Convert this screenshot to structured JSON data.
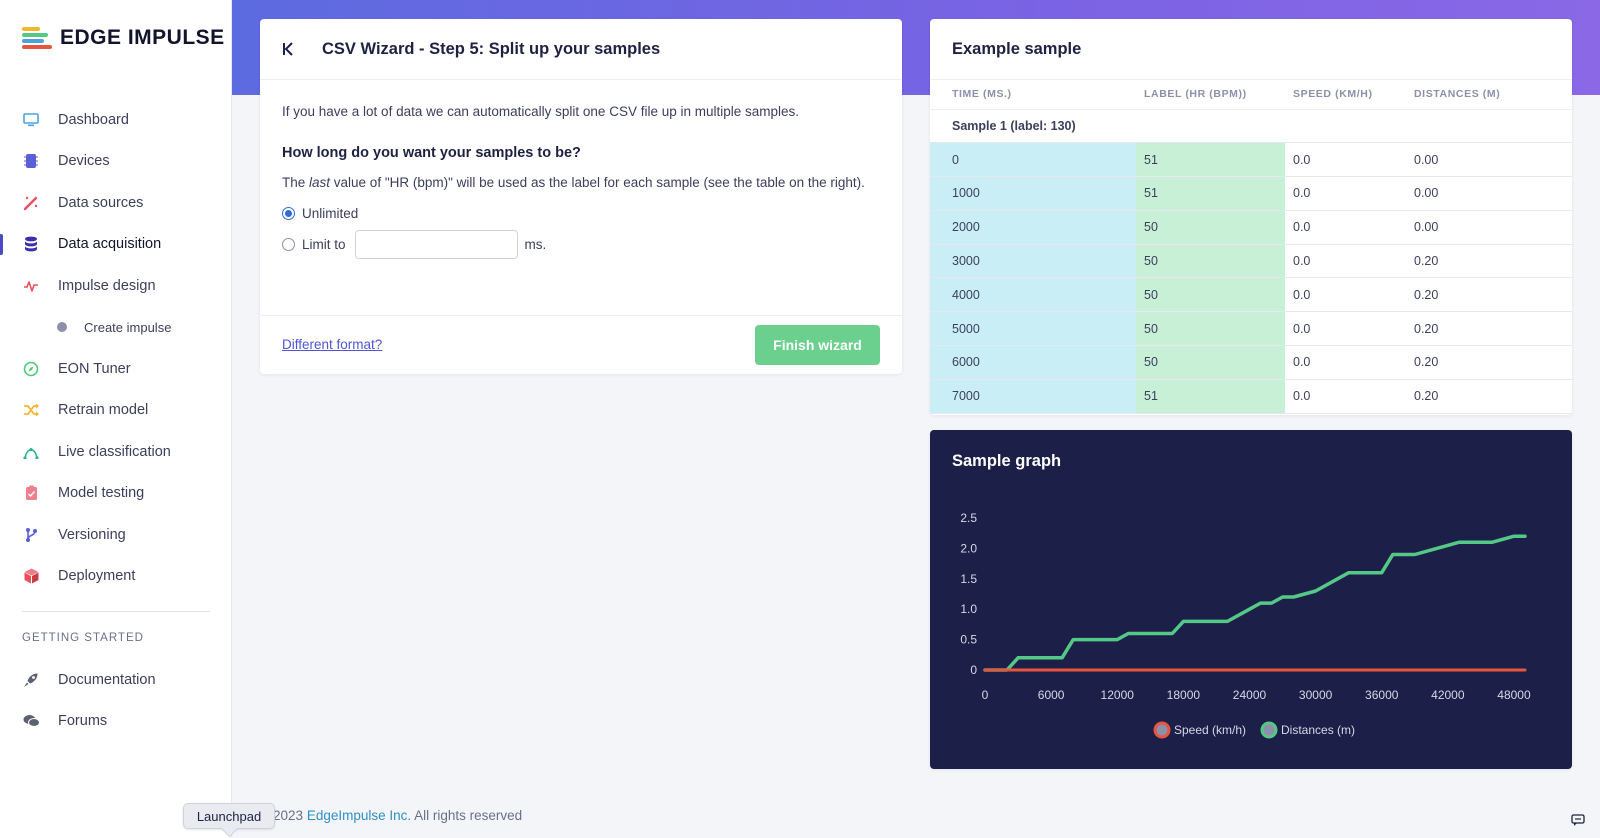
{
  "brand": {
    "name": "EDGE IMPULSE"
  },
  "sidebar": {
    "items": [
      {
        "label": "Dashboard",
        "icon": "monitor-icon",
        "color": "#4ea3dd"
      },
      {
        "label": "Devices",
        "icon": "chip-icon",
        "color": "#5b5fd6"
      },
      {
        "label": "Data sources",
        "icon": "wand-icon",
        "color": "#e8505b"
      },
      {
        "label": "Data acquisition",
        "icon": "database-icon",
        "color": "#3a2fa8",
        "active": true
      },
      {
        "label": "Impulse design",
        "icon": "pulse-icon",
        "color": "#e8505b"
      }
    ],
    "sub_item": {
      "label": "Create impulse"
    },
    "items_after": [
      {
        "label": "EON Tuner",
        "icon": "compass-icon",
        "color": "#4ccb7a"
      },
      {
        "label": "Retrain model",
        "icon": "shuffle-icon",
        "color": "#f2b630"
      },
      {
        "label": "Live classification",
        "icon": "signal-icon",
        "color": "#2fb38a"
      },
      {
        "label": "Model testing",
        "icon": "clipboard-icon",
        "color": "#ef7f8c"
      },
      {
        "label": "Versioning",
        "icon": "branch-icon",
        "color": "#5b5fd6"
      },
      {
        "label": "Deployment",
        "icon": "box-icon",
        "color": "#e8505b"
      }
    ],
    "section_title": "GETTING STARTED",
    "getting_started": [
      {
        "label": "Documentation",
        "icon": "rocket-icon"
      },
      {
        "label": "Forums",
        "icon": "chat-bubbles-icon"
      }
    ]
  },
  "wizard": {
    "title": "CSV Wizard - Step 5: Split up your samples",
    "intro": "If you have a lot of data we can automatically split one CSV file up in multiple samples.",
    "question": "How long do you want your samples to be?",
    "desc_prefix": "The ",
    "desc_em": "last",
    "desc_suffix": " value of \"HR (bpm)\" will be used as the label for each sample (see the table on the right).",
    "option_unlimited": "Unlimited",
    "option_limit": "Limit to",
    "limit_value": "",
    "unit": "ms.",
    "different_format": "Different format?",
    "finish": "Finish wizard"
  },
  "example": {
    "title": "Example sample",
    "columns": [
      "TIME (MS.)",
      "LABEL (HR (BPM))",
      "SPEED (KM/H)",
      "DISTANCES (M)"
    ],
    "group_label": "Sample 1 (label: 130)",
    "rows": [
      [
        "0",
        "51",
        "0.0",
        "0.00"
      ],
      [
        "1000",
        "51",
        "0.0",
        "0.00"
      ],
      [
        "2000",
        "50",
        "0.0",
        "0.00"
      ],
      [
        "3000",
        "50",
        "0.0",
        "0.20"
      ],
      [
        "4000",
        "50",
        "0.0",
        "0.20"
      ],
      [
        "5000",
        "50",
        "0.0",
        "0.20"
      ],
      [
        "6000",
        "50",
        "0.0",
        "0.20"
      ],
      [
        "7000",
        "51",
        "0.0",
        "0.20"
      ]
    ]
  },
  "chart_data": {
    "type": "line",
    "title": "Sample graph",
    "xlabel": "",
    "ylabel": "",
    "xlim": [
      0,
      49000
    ],
    "ylim": [
      0,
      2.5
    ],
    "x_ticks": [
      "0",
      "6000",
      "12000",
      "18000",
      "24000",
      "30000",
      "36000",
      "42000",
      "48000"
    ],
    "y_ticks": [
      "0",
      "0.5",
      "1.0",
      "1.5",
      "2.0",
      "2.5"
    ],
    "grid": false,
    "legend": "bottom-center",
    "series": [
      {
        "name": "Speed (km/h)",
        "color": "#e8553f",
        "x": [
          0,
          49000
        ],
        "y": [
          0,
          0
        ]
      },
      {
        "name": "Distances (m)",
        "color": "#54c987",
        "x": [
          0,
          2000,
          3000,
          7000,
          8000,
          12000,
          13000,
          17000,
          18000,
          22000,
          24000,
          25000,
          26000,
          27000,
          28000,
          30000,
          33000,
          36000,
          37000,
          39000,
          41000,
          43000,
          46000,
          48000,
          49000
        ],
        "y": [
          0,
          0,
          0.2,
          0.2,
          0.5,
          0.5,
          0.6,
          0.6,
          0.8,
          0.8,
          1.0,
          1.1,
          1.1,
          1.2,
          1.2,
          1.3,
          1.6,
          1.6,
          1.9,
          1.9,
          2.0,
          2.1,
          2.1,
          2.2,
          2.2
        ]
      }
    ]
  },
  "footer": {
    "copyright": "2023",
    "company": "EdgeImpulse Inc.",
    "rights": "All rights reserved",
    "launchpad": "Launchpad"
  }
}
